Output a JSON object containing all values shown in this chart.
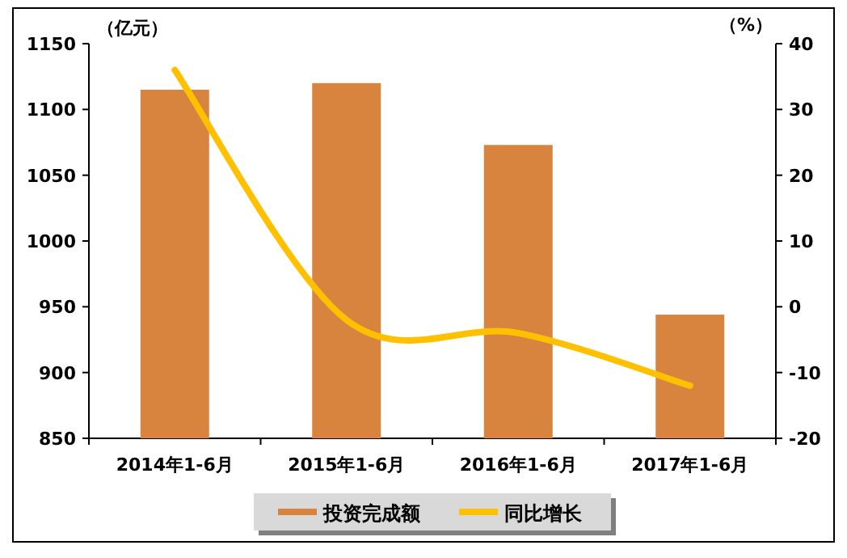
{
  "chart_data": {
    "type": "bar",
    "ylabel": "（亿元）",
    "y2label": "（%）",
    "categories": [
      "2014年1-6月",
      "2015年1-6月",
      "2016年1-6月",
      "2017年1-6月"
    ],
    "ylim": [
      850,
      1150
    ],
    "yticks": [
      850,
      900,
      950,
      1000,
      1050,
      1100,
      1150
    ],
    "y2lim": [
      -20,
      40
    ],
    "y2ticks": [
      -20,
      -10,
      0,
      10,
      20,
      30,
      40
    ],
    "legend": "bottom",
    "grid": false,
    "series": [
      {
        "name": "投资完成额",
        "color": "#d9843e",
        "values": [
          1115,
          1120,
          1073,
          944
        ]
      },
      {
        "name": "同比增长",
        "type": "line",
        "axis": "y2",
        "color": "#ffc000",
        "values": [
          36,
          -2,
          -4,
          -12
        ]
      }
    ]
  }
}
